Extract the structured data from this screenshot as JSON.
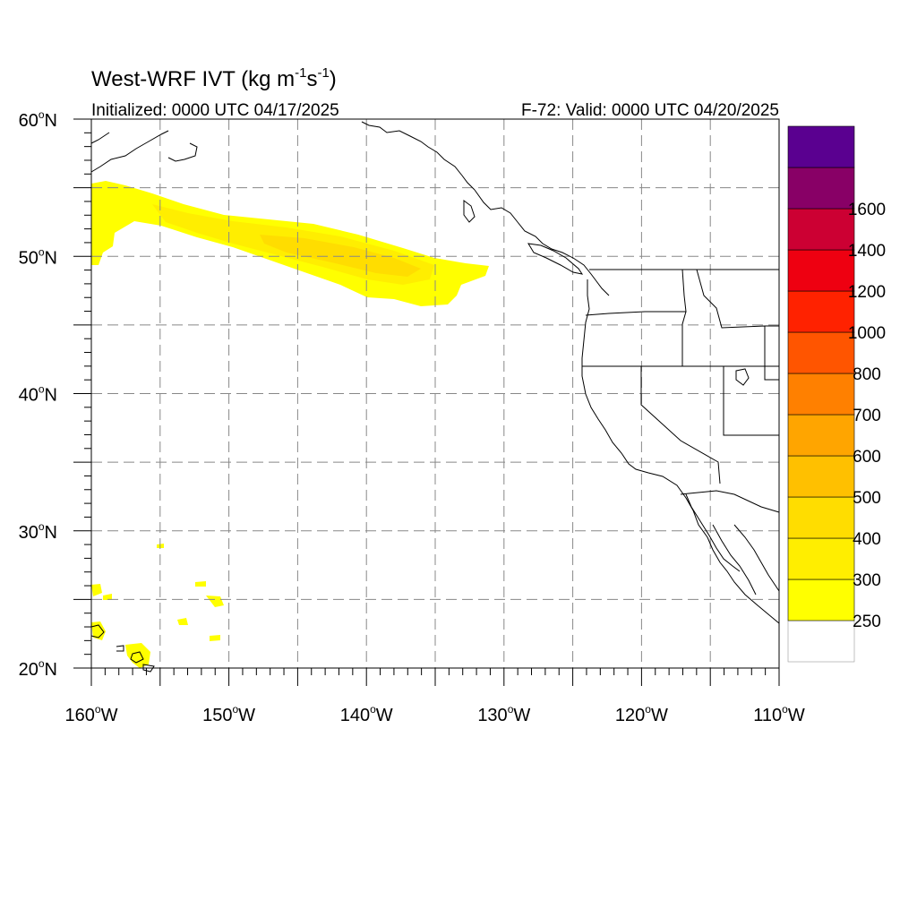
{
  "title": {
    "main": "West-WRF IVT (kg m",
    "sup1": "-1",
    "mid": "s",
    "sup2": "-1",
    "close": ")"
  },
  "initialized": "Initialized: 0000 UTC 04/17/2025",
  "valid": "F-72: Valid: 0000 UTC 04/20/2025",
  "map": {
    "lon_range": [
      -160,
      -110
    ],
    "lat_range": [
      20,
      60
    ],
    "grid_lon_step": 5,
    "grid_lat_step": 5,
    "gridlines": "dashed",
    "lat_ticks": [
      {
        "lat": 60,
        "num": "60",
        "deg": "o",
        "hem": "N"
      },
      {
        "lat": 50,
        "num": "50",
        "deg": "o",
        "hem": "N"
      },
      {
        "lat": 40,
        "num": "40",
        "deg": "o",
        "hem": "N"
      },
      {
        "lat": 30,
        "num": "30",
        "deg": "o",
        "hem": "N"
      },
      {
        "lat": 20,
        "num": "20",
        "deg": "o",
        "hem": "N"
      }
    ],
    "lon_ticks": [
      {
        "lon": -160,
        "num": "160",
        "deg": "o",
        "hem": "W"
      },
      {
        "lon": -150,
        "num": "150",
        "deg": "o",
        "hem": "W"
      },
      {
        "lon": -140,
        "num": "140",
        "deg": "o",
        "hem": "W"
      },
      {
        "lon": -130,
        "num": "130",
        "deg": "o",
        "hem": "W"
      },
      {
        "lon": -120,
        "num": "120",
        "deg": "o",
        "hem": "W"
      },
      {
        "lon": -110,
        "num": "110",
        "deg": "o",
        "hem": "W"
      }
    ]
  },
  "colorbar": {
    "levels": [
      {
        "label": "",
        "color": "#ffffff"
      },
      {
        "label": "250",
        "color": "#ffff00"
      },
      {
        "label": "300",
        "color": "#ffee00"
      },
      {
        "label": "400",
        "color": "#ffdd00"
      },
      {
        "label": "500",
        "color": "#ffc000"
      },
      {
        "label": "600",
        "color": "#ffa500"
      },
      {
        "label": "700",
        "color": "#ff8000"
      },
      {
        "label": "800",
        "color": "#ff5500"
      },
      {
        "label": "1000",
        "color": "#ff2200"
      },
      {
        "label": "1200",
        "color": "#ee0011"
      },
      {
        "label": "1400",
        "color": "#cc0033"
      },
      {
        "label": "1600",
        "color": "#880066"
      },
      {
        "label": "",
        "color": "#5a0090"
      }
    ]
  }
}
